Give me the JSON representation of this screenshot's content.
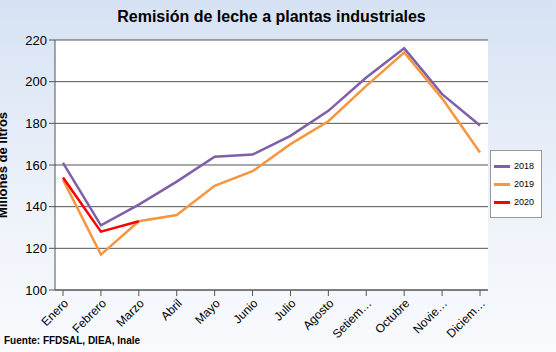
{
  "chart_data": {
    "type": "line",
    "title": "Remisión de leche a plantas industriales",
    "y_label": "Millones de litros",
    "annotation": "Fuente: FFDSAL, DIEA, Inale",
    "categories": [
      "Enero",
      "Febrero",
      "Marzo",
      "Abril",
      "Mayo",
      "Junio",
      "Julio",
      "Agosto",
      "Setiem…",
      "Octubre",
      "Novie…",
      "Diciem…"
    ],
    "series": [
      {
        "name": "2018",
        "color": "#7f5fa8",
        "values": [
          161,
          131,
          141,
          152,
          164,
          165,
          174,
          186,
          202,
          216,
          194,
          179
        ]
      },
      {
        "name": "2019",
        "color": "#f7963c",
        "values": [
          153,
          117,
          133,
          136,
          150,
          157,
          170,
          181,
          198,
          214,
          192,
          166
        ]
      },
      {
        "name": "2020",
        "color": "#ff0000",
        "values": [
          154,
          128,
          133,
          null,
          null,
          null,
          null,
          null,
          null,
          null,
          null,
          null
        ]
      }
    ],
    "ylim": [
      100,
      220
    ],
    "yticks": [
      100,
      120,
      140,
      160,
      180,
      200,
      220
    ],
    "grid": true,
    "legend": "right"
  }
}
